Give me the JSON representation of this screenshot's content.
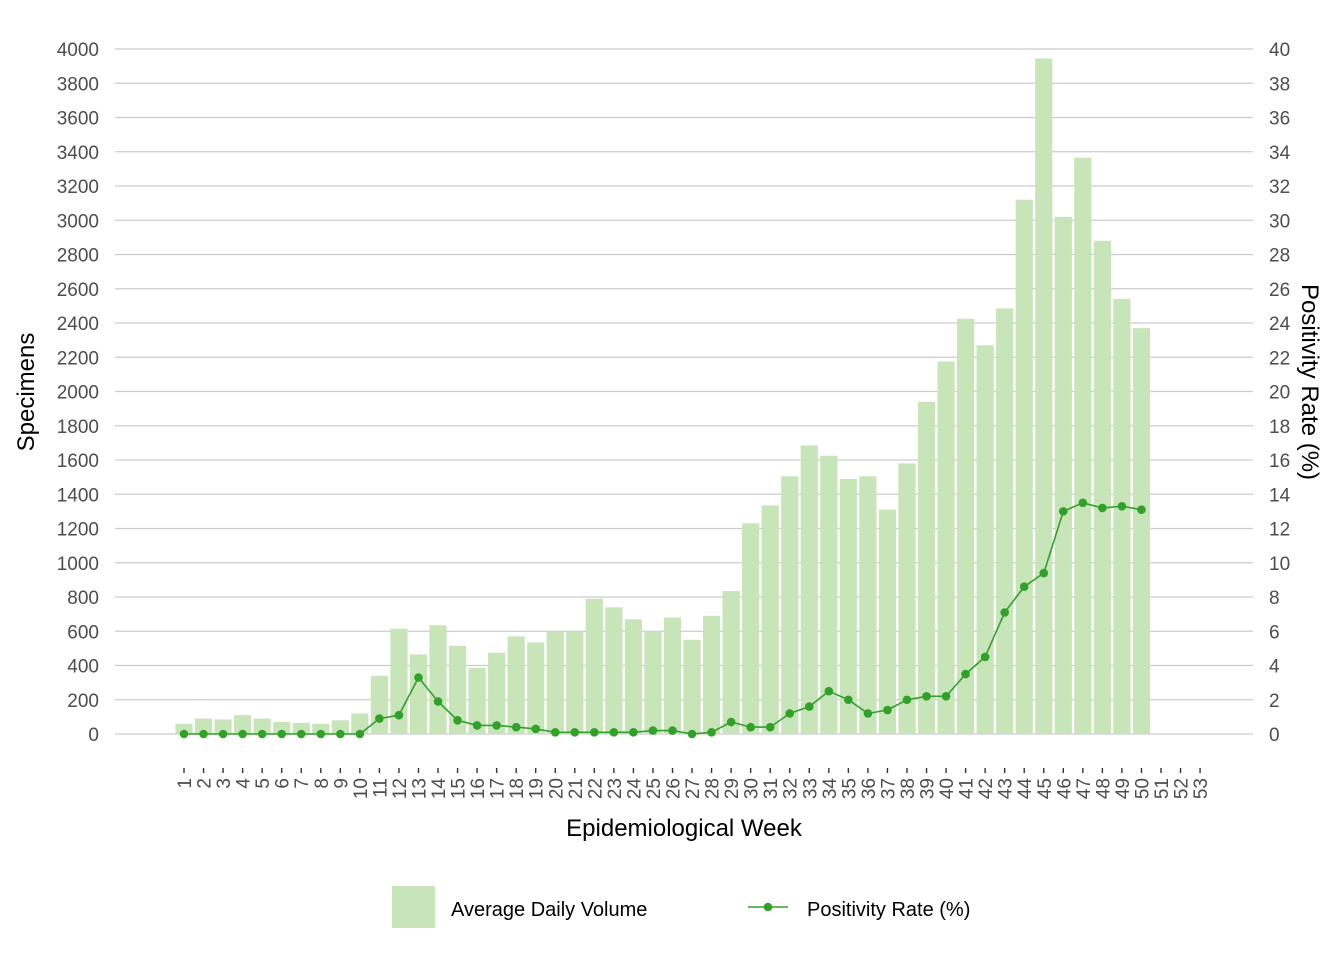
{
  "chart_data": {
    "type": "bar",
    "x_axis": {
      "label": "Epidemiological Week",
      "categories": [
        "1",
        "2",
        "3",
        "4",
        "5",
        "6",
        "7",
        "8",
        "9",
        "10",
        "11",
        "12",
        "13",
        "14",
        "15",
        "16",
        "17",
        "18",
        "19",
        "20",
        "21",
        "22",
        "23",
        "24",
        "25",
        "26",
        "27",
        "28",
        "29",
        "30",
        "31",
        "32",
        "33",
        "34",
        "35",
        "36",
        "37",
        "38",
        "39",
        "40",
        "41",
        "42",
        "43",
        "44",
        "45",
        "46",
        "47",
        "48",
        "49",
        "50",
        "51",
        "52",
        "53"
      ]
    },
    "y_left": {
      "label": "Specimens",
      "range": [
        0,
        4000
      ],
      "ticks": [
        0,
        200,
        400,
        600,
        800,
        1000,
        1200,
        1400,
        1600,
        1800,
        2000,
        2200,
        2400,
        2600,
        2800,
        3000,
        3200,
        3400,
        3600,
        3800,
        4000
      ]
    },
    "y_right": {
      "label": "Positivity Rate (%)",
      "range": [
        0,
        40
      ],
      "ticks": [
        0,
        2,
        4,
        6,
        8,
        10,
        12,
        14,
        16,
        18,
        20,
        22,
        24,
        26,
        28,
        30,
        32,
        34,
        36,
        38,
        40
      ]
    },
    "grid": "horizontal",
    "legend_position": "bottom",
    "series": [
      {
        "name": "Average Daily Volume",
        "type": "bar",
        "axis": "left",
        "color": "#c7e5b9",
        "values": [
          60,
          90,
          85,
          110,
          90,
          70,
          65,
          60,
          80,
          120,
          340,
          615,
          465,
          635,
          515,
          385,
          475,
          570,
          535,
          600,
          600,
          790,
          740,
          670,
          600,
          680,
          550,
          690,
          835,
          1230,
          1335,
          1505,
          1685,
          1625,
          1490,
          1505,
          1310,
          1580,
          1940,
          2175,
          2425,
          2270,
          2485,
          3120,
          3945,
          3020,
          3365,
          2880,
          2540,
          2370,
          null,
          null,
          null
        ]
      },
      {
        "name": "Positivity Rate (%)",
        "type": "line",
        "axis": "right",
        "color": "#33a02c",
        "values": [
          0,
          0,
          0,
          0,
          0,
          0,
          0,
          0,
          0,
          0,
          0.9,
          1.1,
          3.3,
          1.9,
          0.8,
          0.5,
          0.5,
          0.4,
          0.3,
          0.1,
          0.1,
          0.1,
          0.1,
          0.1,
          0.2,
          0.2,
          0,
          0.1,
          0.7,
          0.4,
          0.4,
          1.2,
          1.6,
          2.5,
          2,
          1.2,
          1.4,
          2,
          2.2,
          2.2,
          3.5,
          4.5,
          7.1,
          8.6,
          9.4,
          13,
          13.5,
          13.2,
          13.3,
          13.1,
          null,
          null,
          null
        ]
      }
    ]
  }
}
